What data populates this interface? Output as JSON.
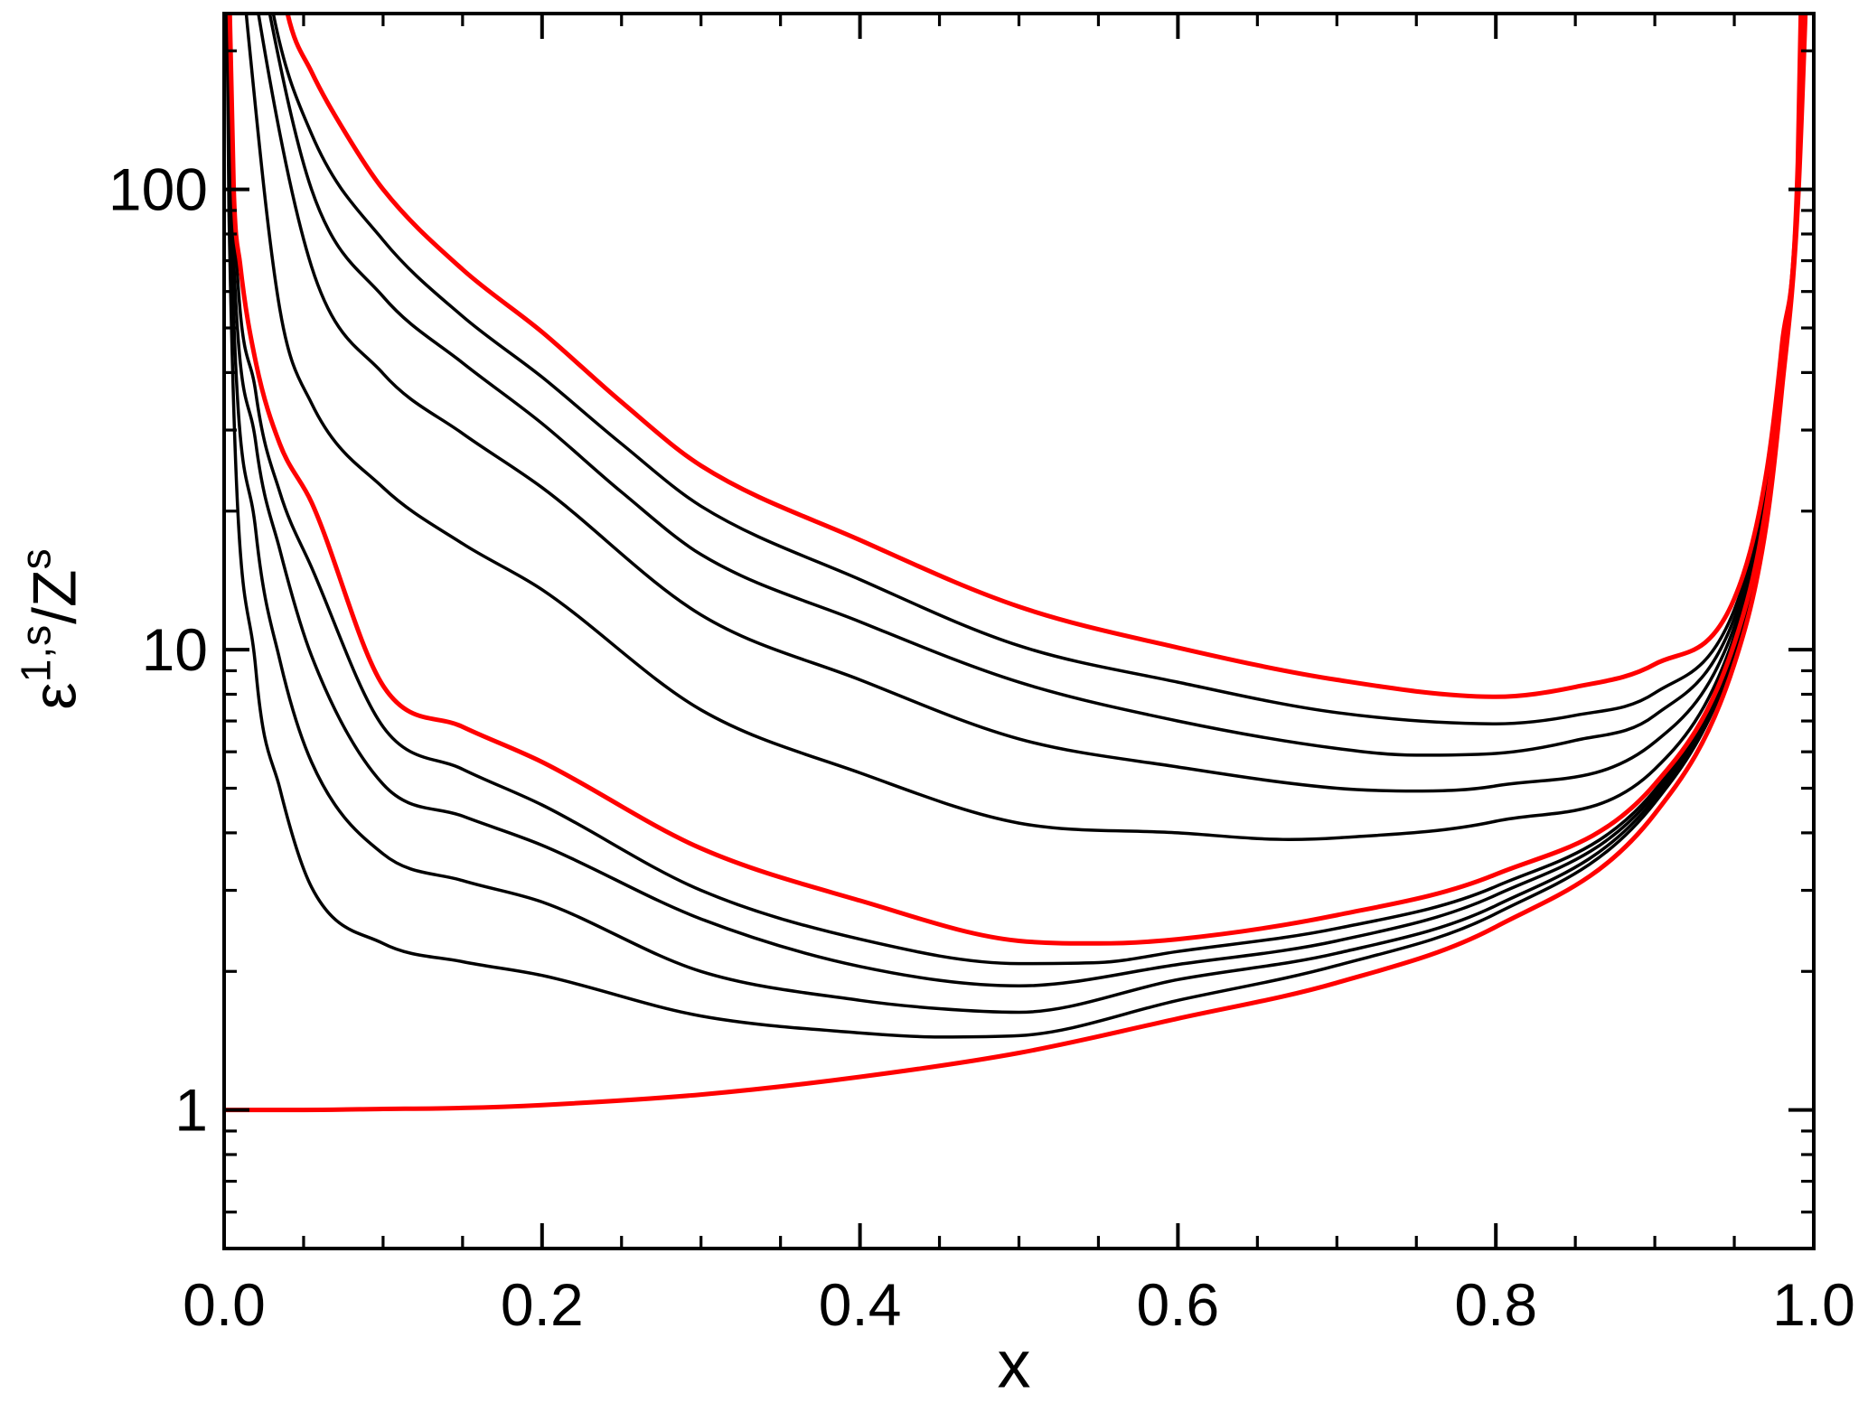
{
  "figure": {
    "background": "#ffffff",
    "frame_color": "#000000"
  },
  "chart_data": {
    "type": "line",
    "title": "",
    "xlabel": "x",
    "ylabel": "ε^{1,s}/Z^s",
    "ylabel_parts": {
      "base1": "ε",
      "sup1": "1,s",
      "base2": "/Z",
      "sup2": "s"
    },
    "xscale": "linear",
    "yscale": "log",
    "xlim": [
      0.0,
      1.0
    ],
    "ylim": [
      0.5,
      241
    ],
    "grid": false,
    "legend": "none",
    "x_ticks": [
      {
        "v": 0.0,
        "label": "0.0"
      },
      {
        "v": 0.2,
        "label": "0.2"
      },
      {
        "v": 0.4,
        "label": "0.4"
      },
      {
        "v": 0.6,
        "label": "0.6"
      },
      {
        "v": 0.8,
        "label": "0.8"
      },
      {
        "v": 1.0,
        "label": "1.0"
      }
    ],
    "x_minor_step": 0.05,
    "y_ticks": [
      {
        "v": 1,
        "label": "1"
      },
      {
        "v": 10,
        "label": "10"
      },
      {
        "v": 100,
        "label": "100"
      }
    ],
    "y_minor_ticks": [
      0.6,
      0.7,
      0.8,
      0.9,
      2,
      3,
      4,
      5,
      6,
      7,
      8,
      9,
      20,
      30,
      40,
      50,
      60,
      70,
      80,
      90,
      200
    ],
    "colors": {
      "highlight": "#ff0000",
      "line": "#000000",
      "axis": "#000000",
      "background": "#ffffff"
    },
    "series": [
      {
        "name": "red-upper-envelope",
        "color": "#ff0000",
        "width": 5,
        "points": [
          [
            0.025,
            500
          ],
          [
            0.04,
            240
          ],
          [
            0.055,
            180
          ],
          [
            0.075,
            135
          ],
          [
            0.1,
            100
          ],
          [
            0.15,
            67
          ],
          [
            0.2,
            49
          ],
          [
            0.25,
            34.5
          ],
          [
            0.3,
            25.1
          ],
          [
            0.4,
            17.3
          ],
          [
            0.5,
            12.4
          ],
          [
            0.6,
            10.1
          ],
          [
            0.7,
            8.6
          ],
          [
            0.8,
            7.9
          ],
          [
            0.85,
            8.3
          ],
          [
            0.9,
            9.3
          ],
          [
            0.95,
            12.9
          ],
          [
            0.97,
            24
          ],
          [
            0.98,
            46
          ],
          [
            0.99,
            115
          ],
          [
            0.9935,
            500
          ]
        ]
      },
      {
        "name": "black-curve-1",
        "color": "#000000",
        "width": 3.5,
        "points": [
          [
            0.018,
            500
          ],
          [
            0.03,
            250
          ],
          [
            0.055,
            132
          ],
          [
            0.1,
            77.6
          ],
          [
            0.15,
            53
          ],
          [
            0.2,
            39.1
          ],
          [
            0.25,
            28
          ],
          [
            0.3,
            20.5
          ],
          [
            0.4,
            14.2
          ],
          [
            0.5,
            10.2
          ],
          [
            0.6,
            8.5
          ],
          [
            0.7,
            7.3
          ],
          [
            0.8,
            6.9
          ],
          [
            0.85,
            7.2
          ],
          [
            0.9,
            8.05
          ],
          [
            0.95,
            12.2
          ],
          [
            0.97,
            23
          ],
          [
            0.98,
            44.5
          ],
          [
            0.99,
            112
          ],
          [
            0.994,
            500
          ]
        ]
      },
      {
        "name": "black-curve-2",
        "color": "#000000",
        "width": 3.5,
        "points": [
          [
            0.013,
            500
          ],
          [
            0.025,
            280
          ],
          [
            0.055,
            100
          ],
          [
            0.1,
            58.5
          ],
          [
            0.15,
            42
          ],
          [
            0.2,
            31
          ],
          [
            0.25,
            22
          ],
          [
            0.3,
            16.1
          ],
          [
            0.4,
            11.5
          ],
          [
            0.5,
            8.5
          ],
          [
            0.6,
            7.0
          ],
          [
            0.7,
            6.1
          ],
          [
            0.75,
            5.9
          ],
          [
            0.8,
            5.95
          ],
          [
            0.85,
            6.35
          ],
          [
            0.9,
            7.2
          ],
          [
            0.95,
            11.7
          ],
          [
            0.97,
            22.3
          ],
          [
            0.98,
            43.5
          ],
          [
            0.99,
            109
          ],
          [
            0.9945,
            500
          ]
        ]
      },
      {
        "name": "black-curve-3",
        "color": "#000000",
        "width": 3.5,
        "points": [
          [
            0.009,
            500
          ],
          [
            0.02,
            260
          ],
          [
            0.055,
            68
          ],
          [
            0.1,
            39.8
          ],
          [
            0.15,
            29.5
          ],
          [
            0.2,
            22.5
          ],
          [
            0.3,
            11.9
          ],
          [
            0.4,
            8.6
          ],
          [
            0.5,
            6.4
          ],
          [
            0.6,
            5.56
          ],
          [
            0.7,
            5.0
          ],
          [
            0.75,
            4.93
          ],
          [
            0.8,
            5.06
          ],
          [
            0.9,
            6.3
          ],
          [
            0.95,
            11.2
          ],
          [
            0.97,
            21.6
          ],
          [
            0.98,
            42.5
          ],
          [
            0.99,
            107
          ],
          [
            0.995,
            500
          ]
        ]
      },
      {
        "name": "black-curve-4",
        "color": "#000000",
        "width": 3.5,
        "points": [
          [
            0.006,
            500
          ],
          [
            0.015,
            220
          ],
          [
            0.035,
            55
          ],
          [
            0.055,
            34.3
          ],
          [
            0.1,
            22.5
          ],
          [
            0.15,
            17
          ],
          [
            0.2,
            13.5
          ],
          [
            0.3,
            7.4
          ],
          [
            0.4,
            5.4
          ],
          [
            0.5,
            4.2
          ],
          [
            0.6,
            4.0
          ],
          [
            0.67,
            3.87
          ],
          [
            0.7,
            3.9
          ],
          [
            0.8,
            4.24
          ],
          [
            0.9,
            5.5
          ],
          [
            0.95,
            10.7
          ],
          [
            0.97,
            21
          ],
          [
            0.98,
            41.5
          ],
          [
            0.99,
            105
          ],
          [
            0.9955,
            500
          ]
        ]
      },
      {
        "name": "red-middle-curve",
        "color": "#ff0000",
        "width": 5,
        "points": [
          [
            0.0017,
            500
          ],
          [
            0.006,
            100
          ],
          [
            0.01,
            69
          ],
          [
            0.02,
            42
          ],
          [
            0.035,
            28
          ],
          [
            0.055,
            20.9
          ],
          [
            0.1,
            8.35
          ],
          [
            0.15,
            6.8
          ],
          [
            0.2,
            5.7
          ],
          [
            0.3,
            3.7
          ],
          [
            0.4,
            2.85
          ],
          [
            0.5,
            2.33
          ],
          [
            0.55,
            2.3
          ],
          [
            0.6,
            2.35
          ],
          [
            0.7,
            2.65
          ],
          [
            0.8,
            3.25
          ],
          [
            0.9,
            5.1
          ],
          [
            0.95,
            10.3
          ],
          [
            0.97,
            20.4
          ],
          [
            0.98,
            40.5
          ],
          [
            0.99,
            103
          ],
          [
            0.996,
            500
          ]
        ]
      },
      {
        "name": "black-curve-5",
        "color": "#000000",
        "width": 3.5,
        "points": [
          [
            0.0015,
            500
          ],
          [
            0.005,
            120
          ],
          [
            0.02,
            36
          ],
          [
            0.035,
            22
          ],
          [
            0.055,
            15.1
          ],
          [
            0.1,
            6.8
          ],
          [
            0.15,
            5.5
          ],
          [
            0.2,
            4.6
          ],
          [
            0.3,
            3.0
          ],
          [
            0.4,
            2.35
          ],
          [
            0.5,
            2.08
          ],
          [
            0.55,
            2.09
          ],
          [
            0.6,
            2.21
          ],
          [
            0.7,
            2.48
          ],
          [
            0.8,
            3.06
          ],
          [
            0.9,
            4.95
          ],
          [
            0.95,
            10.15
          ],
          [
            0.97,
            20
          ],
          [
            0.98,
            39.8
          ],
          [
            0.99,
            101
          ],
          [
            0.9962,
            500
          ]
        ]
      },
      {
        "name": "black-curve-6",
        "color": "#000000",
        "width": 3.5,
        "points": [
          [
            0.0013,
            500
          ],
          [
            0.004,
            110
          ],
          [
            0.02,
            28
          ],
          [
            0.035,
            16.5
          ],
          [
            0.055,
            9.7
          ],
          [
            0.1,
            5.1
          ],
          [
            0.15,
            4.35
          ],
          [
            0.2,
            3.76
          ],
          [
            0.3,
            2.6
          ],
          [
            0.4,
            2.05
          ],
          [
            0.5,
            1.86
          ],
          [
            0.6,
            2.07
          ],
          [
            0.7,
            2.33
          ],
          [
            0.8,
            2.93
          ],
          [
            0.9,
            4.85
          ],
          [
            0.95,
            10.0
          ],
          [
            0.97,
            19.6
          ],
          [
            0.98,
            39
          ],
          [
            0.99,
            99
          ],
          [
            0.9965,
            500
          ]
        ]
      },
      {
        "name": "black-curve-7",
        "color": "#000000",
        "width": 3.5,
        "points": [
          [
            0.0011,
            500
          ],
          [
            0.0035,
            100
          ],
          [
            0.02,
            18
          ],
          [
            0.035,
            9.5
          ],
          [
            0.055,
            5.7
          ],
          [
            0.1,
            3.6
          ],
          [
            0.15,
            3.15
          ],
          [
            0.2,
            2.83
          ],
          [
            0.3,
            2.0
          ],
          [
            0.4,
            1.73
          ],
          [
            0.45,
            1.66
          ],
          [
            0.5,
            1.63
          ],
          [
            0.6,
            1.92
          ],
          [
            0.7,
            2.19
          ],
          [
            0.8,
            2.78
          ],
          [
            0.9,
            4.75
          ],
          [
            0.95,
            9.85
          ],
          [
            0.97,
            19.2
          ],
          [
            0.98,
            38.2
          ],
          [
            0.99,
            97
          ],
          [
            0.9968,
            500
          ]
        ]
      },
      {
        "name": "black-curve-8",
        "color": "#000000",
        "width": 3.5,
        "points": [
          [
            0.001,
            500
          ],
          [
            0.003,
            90
          ],
          [
            0.02,
            9
          ],
          [
            0.035,
            5
          ],
          [
            0.055,
            3.05
          ],
          [
            0.1,
            2.3
          ],
          [
            0.15,
            2.1
          ],
          [
            0.2,
            1.96
          ],
          [
            0.3,
            1.6
          ],
          [
            0.4,
            1.47
          ],
          [
            0.45,
            1.44
          ],
          [
            0.5,
            1.45
          ],
          [
            0.6,
            1.73
          ],
          [
            0.7,
            2.06
          ],
          [
            0.8,
            2.67
          ],
          [
            0.9,
            4.65
          ],
          [
            0.95,
            9.7
          ],
          [
            0.97,
            18.9
          ],
          [
            0.98,
            37.5
          ],
          [
            0.99,
            95
          ],
          [
            0.997,
            500
          ]
        ]
      },
      {
        "name": "red-lower-envelope",
        "color": "#ff0000",
        "width": 5,
        "points": [
          [
            0.0,
            1.0
          ],
          [
            0.05,
            1.0
          ],
          [
            0.1,
            1.005
          ],
          [
            0.15,
            1.01
          ],
          [
            0.2,
            1.025
          ],
          [
            0.3,
            1.08
          ],
          [
            0.4,
            1.18
          ],
          [
            0.5,
            1.33
          ],
          [
            0.6,
            1.58
          ],
          [
            0.7,
            1.89
          ],
          [
            0.8,
            2.5
          ],
          [
            0.9,
            4.4
          ],
          [
            0.95,
            9.3
          ],
          [
            0.97,
            18.5
          ],
          [
            0.98,
            36.8
          ],
          [
            0.99,
            93
          ],
          [
            0.998,
            500
          ]
        ]
      }
    ]
  }
}
